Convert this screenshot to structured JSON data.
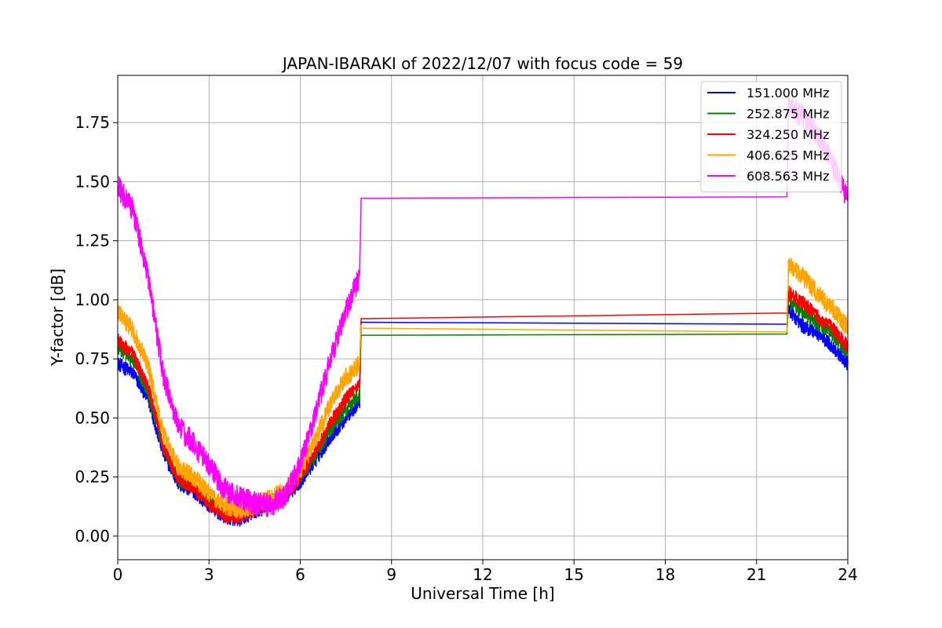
{
  "chart_data": {
    "type": "line",
    "title": "JAPAN-IBARAKI of 2022/12/07 with focus code = 59",
    "xlabel": "Universal Time [h]",
    "ylabel": "Y-factor [dB]",
    "xlim": [
      0,
      24
    ],
    "ylim": [
      -0.1,
      1.95
    ],
    "xticks": [
      0,
      3,
      6,
      9,
      12,
      15,
      18,
      21,
      24
    ],
    "yticks": [
      0.0,
      0.25,
      0.5,
      0.75,
      1.0,
      1.25,
      1.5,
      1.75
    ],
    "ytick_labels": [
      "0.00",
      "0.25",
      "0.50",
      "0.75",
      "1.00",
      "1.25",
      "1.50",
      "1.75"
    ],
    "grid": true,
    "legend_position": "top-right",
    "series": [
      {
        "name": "151.000 MHz",
        "color": "#0000ff",
        "noise": 0.03,
        "x": [
          0,
          0.5,
          1.0,
          1.5,
          2.0,
          2.5,
          3.0,
          3.5,
          4.0,
          4.5,
          5.0,
          5.5,
          6.0,
          6.5,
          7.0,
          7.5,
          7.95,
          8.0,
          22.0,
          22.05,
          22.5,
          23.0,
          23.5,
          24.0
        ],
        "y": [
          0.73,
          0.69,
          0.58,
          0.35,
          0.22,
          0.19,
          0.13,
          0.08,
          0.07,
          0.1,
          0.13,
          0.16,
          0.23,
          0.32,
          0.42,
          0.5,
          0.57,
          0.905,
          0.92,
          0.96,
          0.89,
          0.86,
          0.8,
          0.73
        ]
      },
      {
        "name": "252.875 MHz",
        "color": "#008000",
        "noise": 0.03,
        "x": [
          0,
          0.5,
          1.0,
          1.5,
          2.0,
          2.5,
          3.0,
          3.5,
          4.0,
          4.5,
          5.0,
          5.5,
          6.0,
          6.5,
          7.0,
          7.5,
          7.95,
          8.0,
          22.0,
          22.05,
          22.5,
          23.0,
          23.5,
          24.0
        ],
        "y": [
          0.8,
          0.74,
          0.61,
          0.37,
          0.24,
          0.2,
          0.15,
          0.1,
          0.09,
          0.12,
          0.15,
          0.18,
          0.25,
          0.34,
          0.45,
          0.53,
          0.6,
          0.85,
          0.86,
          1.0,
          0.95,
          0.9,
          0.85,
          0.78
        ]
      },
      {
        "name": "324.250 MHz",
        "color": "#ff0000",
        "noise": 0.03,
        "x": [
          0,
          0.5,
          1.0,
          1.5,
          2.0,
          2.5,
          3.0,
          3.5,
          4.0,
          4.5,
          5.0,
          5.5,
          6.0,
          6.5,
          7.0,
          7.5,
          7.95,
          8.0,
          22.0,
          22.05,
          22.5,
          23.0,
          23.5,
          24.0
        ],
        "y": [
          0.83,
          0.77,
          0.63,
          0.38,
          0.24,
          0.2,
          0.14,
          0.09,
          0.08,
          0.11,
          0.14,
          0.17,
          0.25,
          0.36,
          0.48,
          0.58,
          0.65,
          0.92,
          0.93,
          1.03,
          0.99,
          0.93,
          0.88,
          0.8
        ]
      },
      {
        "name": "406.625 MHz",
        "color": "#ffa500",
        "noise": 0.04,
        "x": [
          0,
          0.5,
          1.0,
          1.5,
          2.0,
          2.5,
          3.0,
          3.5,
          4.0,
          4.5,
          5.0,
          5.5,
          6.0,
          6.5,
          7.0,
          7.5,
          7.95,
          8.0,
          22.0,
          22.05,
          22.5,
          23.0,
          23.5,
          24.0
        ],
        "y": [
          0.95,
          0.87,
          0.72,
          0.43,
          0.29,
          0.25,
          0.18,
          0.13,
          0.11,
          0.13,
          0.16,
          0.19,
          0.28,
          0.41,
          0.56,
          0.67,
          0.73,
          0.88,
          0.9,
          1.15,
          1.1,
          1.03,
          0.96,
          0.88
        ]
      },
      {
        "name": "608.563 MHz",
        "color": "#ff00ff",
        "noise": 0.05,
        "x": [
          0,
          0.5,
          1.0,
          1.5,
          2.0,
          2.5,
          3.0,
          3.5,
          4.0,
          4.5,
          5.0,
          5.5,
          6.0,
          6.5,
          7.0,
          7.5,
          7.95,
          8.0,
          22.0,
          22.05,
          22.5,
          23.0,
          23.5,
          24.0
        ],
        "y": [
          1.48,
          1.38,
          1.1,
          0.68,
          0.46,
          0.39,
          0.3,
          0.2,
          0.16,
          0.14,
          0.13,
          0.17,
          0.3,
          0.52,
          0.75,
          0.95,
          1.1,
          1.43,
          1.45,
          1.82,
          1.78,
          1.7,
          1.58,
          1.42
        ]
      }
    ]
  }
}
